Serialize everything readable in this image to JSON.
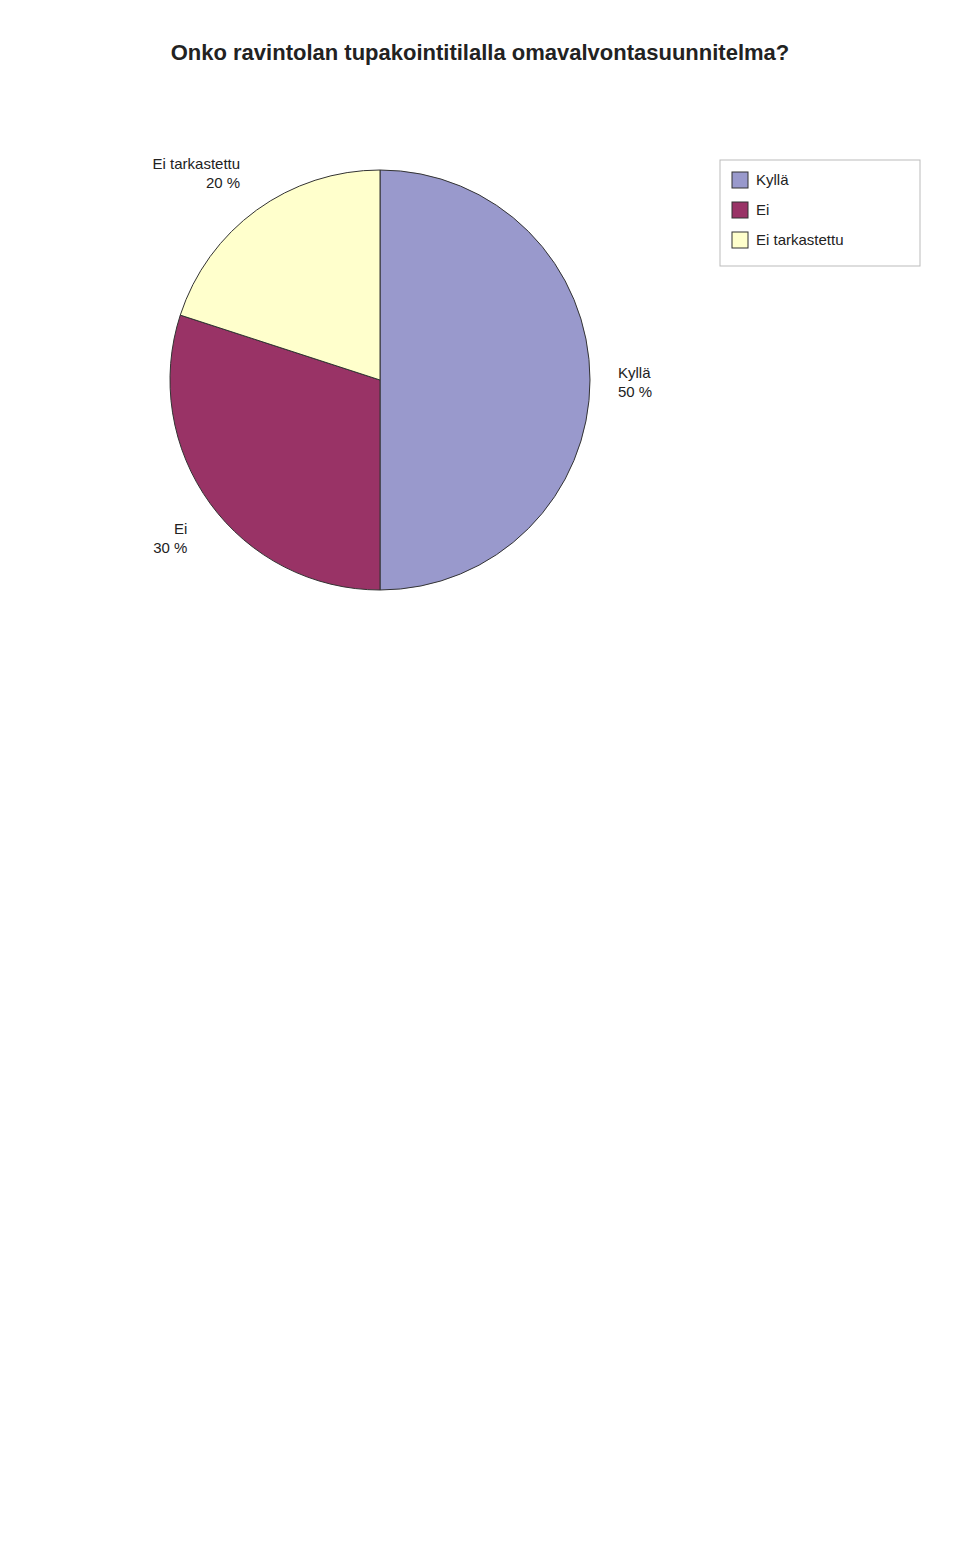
{
  "chart_data": {
    "type": "pie",
    "title": "Onko ravintolan tupakointitilalla omavalvontasuunnitelma?",
    "categories": [
      "Kyllä",
      "Ei",
      "Ei tarkastettu"
    ],
    "values": [
      50,
      30,
      20
    ],
    "value_labels": [
      "50 %",
      "30 %",
      "20 %"
    ],
    "colors": [
      "#9999CC",
      "#993366",
      "#FFFFCC"
    ],
    "data_labels": true,
    "legend": "right"
  }
}
